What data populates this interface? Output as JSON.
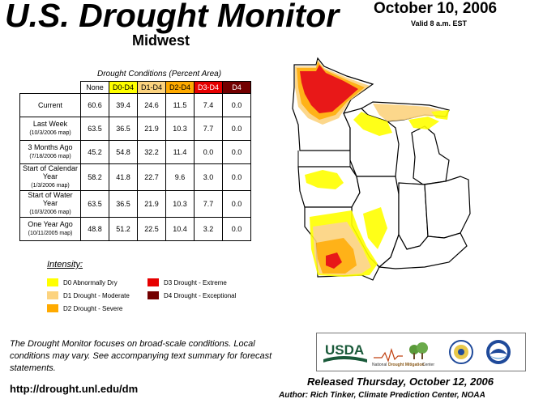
{
  "header": {
    "title": "U.S. Drought Monitor",
    "region": "Midwest",
    "date": "October 10, 2006",
    "valid": "Valid 8 a.m. EST"
  },
  "table": {
    "caption": "Drought Conditions (Percent Area)",
    "columns": [
      "None",
      "D0-D4",
      "D1-D4",
      "D2-D4",
      "D3-D4",
      "D4"
    ],
    "rows": [
      {
        "label": "Current",
        "sub": "",
        "values": [
          "60.6",
          "39.4",
          "24.6",
          "11.5",
          "7.4",
          "0.0"
        ]
      },
      {
        "label": "Last Week",
        "sub": "(10/3/2006 map)",
        "values": [
          "63.5",
          "36.5",
          "21.9",
          "10.3",
          "7.7",
          "0.0"
        ]
      },
      {
        "label": "3 Months Ago",
        "sub": "(7/18/2006 map)",
        "values": [
          "45.2",
          "54.8",
          "32.2",
          "11.4",
          "0.0",
          "0.0"
        ]
      },
      {
        "label": "Start of Calendar Year",
        "sub": "(1/3/2006 map)",
        "values": [
          "58.2",
          "41.8",
          "22.7",
          "9.6",
          "3.0",
          "0.0"
        ]
      },
      {
        "label": "Start of Water Year",
        "sub": "(10/3/2006 map)",
        "values": [
          "63.5",
          "36.5",
          "21.9",
          "10.3",
          "7.7",
          "0.0"
        ]
      },
      {
        "label": "One Year Ago",
        "sub": "(10/11/2005 map)",
        "values": [
          "48.8",
          "51.2",
          "22.5",
          "10.4",
          "3.2",
          "0.0"
        ]
      }
    ]
  },
  "legend": {
    "title": "Intensity:",
    "items": [
      {
        "label": "D0 Abnormally Dry",
        "color": "#ffff00"
      },
      {
        "label": "D1 Drought - Moderate",
        "color": "#fcd37f"
      },
      {
        "label": "D2 Drought - Severe",
        "color": "#ffaa00"
      },
      {
        "label": "D3 Drought - Extreme",
        "color": "#e60000"
      },
      {
        "label": "D4 Drought - Exceptional",
        "color": "#730000"
      }
    ]
  },
  "footer": {
    "note": "The Drought Monitor focuses on broad-scale conditions. Local conditions may vary. See accompanying text summary for forecast statements.",
    "url": "http://drought.unl.edu/dm",
    "released": "Released Thursday, October 12, 2006",
    "author": "Author: Rich Tinker, Climate Prediction Center, NOAA"
  },
  "logos": {
    "usda": "USDA",
    "ndmc_prefix": "National",
    "ndmc_name": "Drought Mitigation",
    "ndmc_suffix": "Center"
  }
}
